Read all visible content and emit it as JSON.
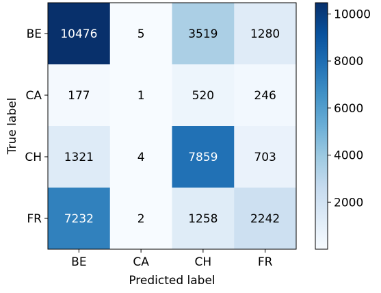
{
  "chart_data": {
    "type": "heatmap",
    "title": "",
    "xlabel": "Predicted label",
    "ylabel": "True label",
    "x_categories": [
      "BE",
      "CA",
      "CH",
      "FR"
    ],
    "y_categories": [
      "BE",
      "CA",
      "CH",
      "FR"
    ],
    "matrix": [
      [
        10476,
        5,
        3519,
        1280
      ],
      [
        177,
        1,
        520,
        246
      ],
      [
        1321,
        4,
        7859,
        703
      ],
      [
        7232,
        2,
        1258,
        2242
      ]
    ],
    "colormap": "Blues",
    "color_range": [
      1,
      10476
    ],
    "colorbar_ticks": [
      2000,
      4000,
      6000,
      8000,
      10000
    ],
    "grid": false
  }
}
